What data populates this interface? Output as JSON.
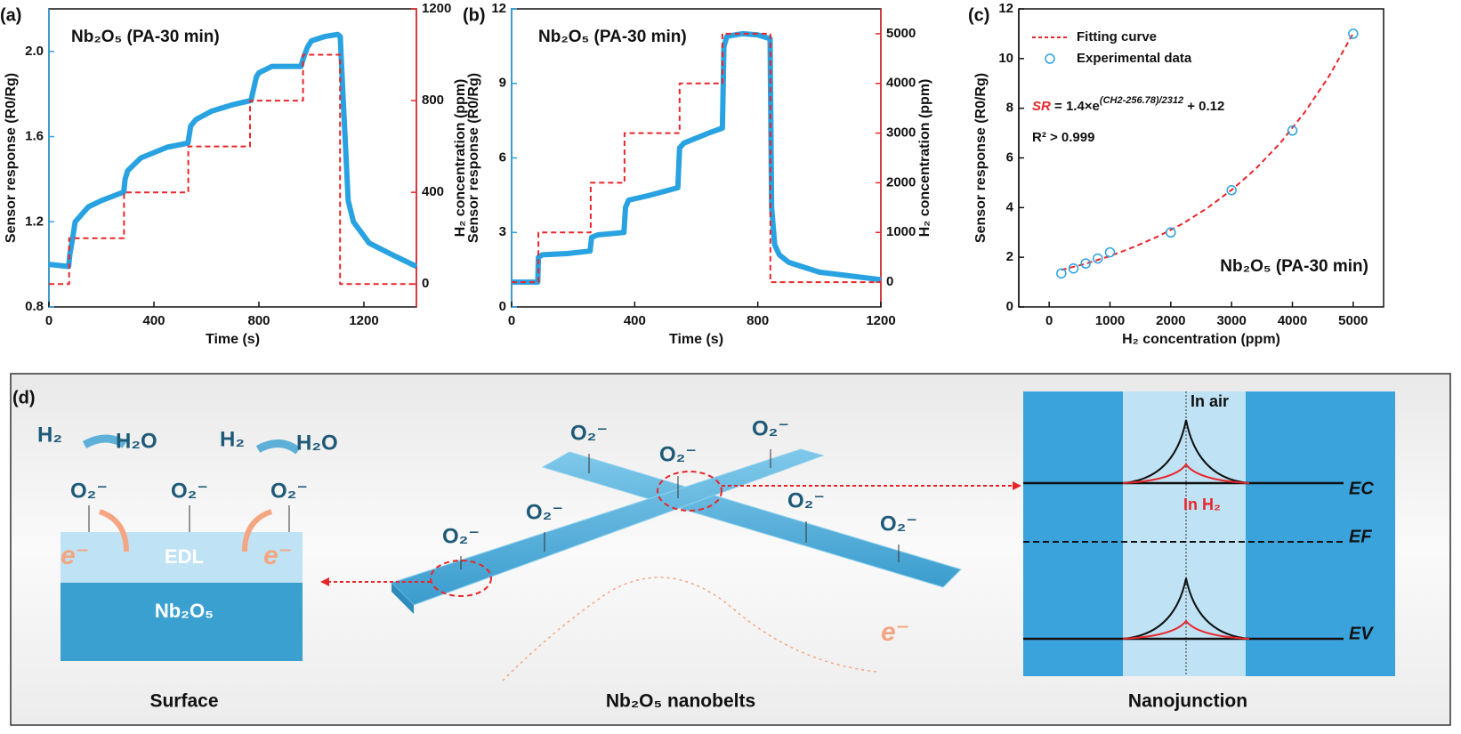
{
  "chart_data": [
    {
      "type": "line",
      "panel": "(a)",
      "annotation": "Nb₂O₅ (PA-30 min)",
      "xlabel": "Time (s)",
      "ylabel": "Sensor response (R0/Rg)",
      "y2label": "H₂ concentration (ppm)",
      "ycolor": "#29a2e1",
      "y2color": "#e8262a",
      "xlim": [
        0,
        1400
      ],
      "xticks": [
        0,
        400,
        800,
        1200
      ],
      "ylim": [
        0.8,
        2.2
      ],
      "yticks": [
        0.8,
        1.2,
        1.6,
        {
          "value": 2,
          "label": "2.0"
        }
      ],
      "y2lim": [
        -100,
        1200
      ],
      "y2ticks": [
        0,
        400,
        800,
        1200
      ],
      "series": [
        {
          "color": "#29a2e1",
          "x": [
            0,
            75,
            80,
            90,
            100,
            150,
            200,
            285,
            290,
            300,
            350,
            450,
            530,
            540,
            560,
            620,
            700,
            770,
            790,
            800,
            850,
            960,
            970,
            985,
            1000,
            1050,
            1100,
            1110,
            1120,
            1130,
            1140,
            1160,
            1220,
            1300,
            1400
          ],
          "values": [
            1.0,
            0.99,
            1.05,
            1.12,
            1.2,
            1.27,
            1.3,
            1.34,
            1.4,
            1.44,
            1.5,
            1.55,
            1.57,
            1.65,
            1.68,
            1.72,
            1.75,
            1.77,
            1.88,
            1.9,
            1.93,
            1.93,
            1.97,
            2.02,
            2.05,
            2.07,
            2.08,
            2.07,
            1.8,
            1.55,
            1.3,
            1.2,
            1.1,
            1.05,
            0.99
          ]
        },
        {
          "color": "#e8262a",
          "axis": "y2",
          "dash": true,
          "x": [
            0,
            77,
            77,
            286,
            286,
            531,
            531,
            766,
            766,
            968,
            968,
            1109,
            1109,
            1400
          ],
          "values": [
            0,
            0,
            200,
            200,
            400,
            400,
            600,
            600,
            800,
            800,
            1000,
            1000,
            0,
            0
          ]
        }
      ]
    },
    {
      "type": "line",
      "panel": "(b)",
      "annotation": "Nb₂O₅ (PA-30 min)",
      "xlabel": "Time (s)",
      "ylabel": "Sensor response (R0/Rg)",
      "y2label": "H₂ concentration (ppm)",
      "ycolor": "#29a2e1",
      "y2color": "#e8262a",
      "xlim": [
        0,
        1200
      ],
      "xticks": [
        0,
        400,
        800,
        1200
      ],
      "ylim": [
        0,
        12
      ],
      "yticks": [
        0,
        3,
        6,
        9,
        12
      ],
      "y2lim": [
        -500,
        5500
      ],
      "y2ticks": [
        0,
        1000,
        2000,
        3000,
        4000,
        5000
      ],
      "series": [
        {
          "color": "#29a2e1",
          "x": [
            0,
            85,
            87,
            100,
            180,
            255,
            260,
            280,
            365,
            370,
            380,
            450,
            540,
            546,
            560,
            640,
            685,
            690,
            700,
            750,
            800,
            840,
            845,
            855,
            870,
            900,
            1000,
            1100,
            1200
          ],
          "values": [
            1.0,
            1.0,
            2.0,
            2.1,
            2.15,
            2.25,
            2.8,
            2.9,
            3.0,
            4.0,
            4.3,
            4.5,
            4.8,
            6.4,
            6.6,
            7.0,
            7.2,
            10.5,
            10.9,
            11.0,
            10.95,
            10.8,
            4.0,
            2.5,
            2.1,
            1.8,
            1.4,
            1.25,
            1.1
          ]
        },
        {
          "color": "#e8262a",
          "axis": "y2",
          "dash": true,
          "x": [
            0,
            87,
            87,
            257,
            257,
            367,
            367,
            546,
            546,
            685,
            685,
            841,
            841,
            1200
          ],
          "values": [
            0,
            0,
            1000,
            1000,
            2000,
            2000,
            3000,
            3000,
            4000,
            4000,
            5000,
            5000,
            0,
            0
          ]
        }
      ]
    },
    {
      "type": "scatter",
      "panel": "(c)",
      "annotation": "Nb₂O₅ (PA-30 min)",
      "xlabel": "H₂ concentration (ppm)",
      "ylabel": "Sensor response (R0/Rg)",
      "equation": {
        "lhs": "SR",
        "base": " = 1.4×e",
        "exponent": "(CH2-256.78)/2312",
        "tail": " + 0.12"
      },
      "r2": "R² > 0.999",
      "legend": "upper left",
      "xlim": [
        -500,
        5500
      ],
      "xticks": [
        0,
        1000,
        2000,
        3000,
        4000,
        5000
      ],
      "ylim": [
        0,
        12
      ],
      "yticks": [
        0,
        2,
        4,
        6,
        8,
        10,
        12
      ],
      "series": [
        {
          "name": "Fitting curve",
          "type": "line",
          "dash": true,
          "color": "#e8262a",
          "x": [
            200,
            600,
            1000,
            1400,
            1800,
            2200,
            2600,
            3000,
            3400,
            3800,
            4200,
            4600,
            5000
          ],
          "values": [
            1.49,
            1.74,
            2.05,
            2.42,
            2.85,
            3.36,
            3.98,
            4.71,
            5.57,
            6.6,
            7.83,
            9.28,
            11.01
          ]
        },
        {
          "name": "Experimental data",
          "type": "scatter",
          "color": "#29a2e1",
          "x": [
            200,
            400,
            600,
            800,
            1000,
            2000,
            3000,
            4000,
            5000
          ],
          "values": [
            1.35,
            1.55,
            1.75,
            1.95,
            2.2,
            3.0,
            4.7,
            7.1,
            11.0
          ]
        }
      ]
    }
  ],
  "diagram": {
    "panel": "(d)",
    "surface": {
      "reactions": [
        "H₂",
        "H₂O",
        "H₂",
        "H₂O"
      ],
      "adsorbates": [
        "O₂⁻",
        "O₂⁻",
        "O₂⁻"
      ],
      "electrons": [
        "e⁻",
        "e⁻"
      ],
      "layers": [
        "EDL",
        "Nb₂O₅"
      ],
      "caption": "Surface"
    },
    "nanobelts": {
      "adsorbates": [
        "O₂⁻",
        "O₂⁻",
        "O₂⁻",
        "O₂⁻",
        "O₂⁻",
        "O₂⁻",
        "O₂⁻"
      ],
      "electron": "e⁻",
      "caption": "Nb₂O₅ nanobelts"
    },
    "nanojunction": {
      "states": [
        "In air",
        "In H₂"
      ],
      "levels": [
        "EC",
        "EF",
        "EV"
      ],
      "caption": "Nanojunction"
    }
  }
}
